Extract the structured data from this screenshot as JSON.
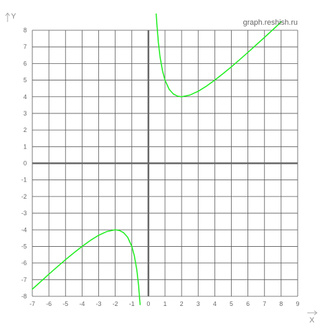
{
  "site_label": "graph.reshish.ru",
  "chart_data": {
    "type": "line",
    "title": "",
    "xlabel": "X",
    "ylabel": "Y",
    "xlim": [
      -7,
      9
    ],
    "ylim": [
      -8,
      8
    ],
    "grid": true,
    "x_ticks": [
      -7,
      -6,
      -5,
      -4,
      -3,
      -2,
      -1,
      0,
      1,
      2,
      3,
      4,
      5,
      6,
      7,
      8,
      9
    ],
    "y_ticks": [
      -8,
      -7,
      -6,
      -5,
      -4,
      -3,
      -2,
      -1,
      0,
      1,
      2,
      3,
      4,
      5,
      6,
      7,
      8
    ],
    "series": [
      {
        "color": "#22ee22",
        "points": [
          [
            -7,
            -7.57
          ],
          [
            -6.5,
            -7.12
          ],
          [
            -6,
            -6.67
          ],
          [
            -5.5,
            -6.23
          ],
          [
            -5,
            -5.8
          ],
          [
            -4.5,
            -5.39
          ],
          [
            -4,
            -5.0
          ],
          [
            -3.5,
            -4.64
          ],
          [
            -3,
            -4.33
          ],
          [
            -2.5,
            -4.1
          ],
          [
            -2,
            -4.0
          ],
          [
            -1.75,
            -4.04
          ],
          [
            -1.5,
            -4.17
          ],
          [
            -1.25,
            -4.45
          ],
          [
            -1,
            -5.0
          ],
          [
            -0.85,
            -5.56
          ],
          [
            -0.7,
            -6.41
          ],
          [
            -0.6,
            -7.27
          ],
          [
            -0.5,
            -8.5
          ]
        ]
      },
      {
        "color": "#22ee22",
        "points": [
          [
            0.47,
            8.98
          ],
          [
            0.5,
            8.5
          ],
          [
            0.6,
            7.27
          ],
          [
            0.7,
            6.41
          ],
          [
            0.85,
            5.56
          ],
          [
            1,
            5.0
          ],
          [
            1.25,
            4.45
          ],
          [
            1.5,
            4.17
          ],
          [
            1.75,
            4.04
          ],
          [
            2,
            4.0
          ],
          [
            2.5,
            4.1
          ],
          [
            3,
            4.33
          ],
          [
            3.5,
            4.64
          ],
          [
            4,
            5.0
          ],
          [
            4.5,
            5.39
          ],
          [
            5,
            5.8
          ],
          [
            5.5,
            6.23
          ],
          [
            6,
            6.67
          ],
          [
            6.5,
            7.12
          ],
          [
            7,
            7.57
          ],
          [
            7.5,
            8.03
          ],
          [
            8,
            8.5
          ]
        ]
      }
    ]
  }
}
